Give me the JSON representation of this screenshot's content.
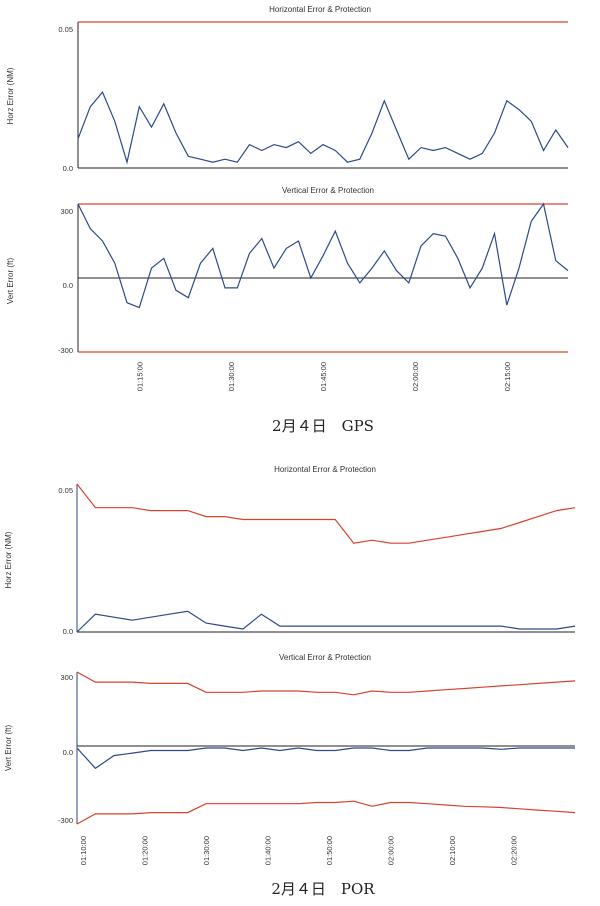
{
  "figure1": {
    "caption": "2月４日　GPS",
    "time_ticks": [
      "01:15:00",
      "01:30:00",
      "01:45:00",
      "02:00:00",
      "02:15:00"
    ]
  },
  "figure2": {
    "caption": "2月４日　POR",
    "time_ticks": [
      "01:10:00",
      "01:20:00",
      "01:30:00",
      "01:40:00",
      "01:50:00",
      "02:00:00",
      "02:10:00",
      "02:20:00"
    ]
  },
  "colors": {
    "error": "#2c4a8a",
    "protection": "#d8432c",
    "axis": "#222222"
  },
  "chart_data": [
    {
      "type": "line",
      "title": "Horizontal Error & Protection",
      "ylabel": "Horz Error (NM)",
      "ylim": [
        0,
        0.05
      ],
      "yticks": [
        "0.05",
        "0.0"
      ],
      "x_start": "01:05:00",
      "x_end": "02:25:00",
      "x": [
        "01:05:00",
        "01:07:00",
        "01:09:00",
        "01:11:00",
        "01:13:00",
        "01:15:00",
        "01:17:00",
        "01:19:00",
        "01:21:00",
        "01:23:00",
        "01:25:00",
        "01:27:00",
        "01:29:00",
        "01:31:00",
        "01:33:00",
        "01:35:00",
        "01:37:00",
        "01:39:00",
        "01:41:00",
        "01:43:00",
        "01:45:00",
        "01:47:00",
        "01:49:00",
        "01:51:00",
        "01:53:00",
        "01:55:00",
        "01:57:00",
        "01:59:00",
        "02:01:00",
        "02:03:00",
        "02:05:00",
        "02:07:00",
        "02:09:00",
        "02:11:00",
        "02:13:00",
        "02:15:00",
        "02:17:00",
        "02:19:00",
        "02:21:00",
        "02:23:00",
        "02:25:00"
      ],
      "series": [
        {
          "role": "protection",
          "values": [
            0.05,
            0.05,
            0.05,
            0.05,
            0.05,
            0.05,
            0.05,
            0.05,
            0.05,
            0.05,
            0.05,
            0.05,
            0.05,
            0.05,
            0.05,
            0.05,
            0.05,
            0.05,
            0.05,
            0.05,
            0.05,
            0.05,
            0.05,
            0.05,
            0.05,
            0.05,
            0.05,
            0.05,
            0.05,
            0.05,
            0.05,
            0.05,
            0.05,
            0.05,
            0.05,
            0.05,
            0.05,
            0.05,
            0.05,
            0.05,
            0.05
          ]
        },
        {
          "role": "error",
          "values": [
            0.01,
            0.021,
            0.026,
            0.016,
            0.002,
            0.021,
            0.014,
            0.022,
            0.012,
            0.004,
            0.003,
            0.002,
            0.003,
            0.002,
            0.008,
            0.006,
            0.008,
            0.007,
            0.009,
            0.005,
            0.008,
            0.006,
            0.002,
            0.003,
            0.012,
            0.023,
            0.013,
            0.003,
            0.007,
            0.006,
            0.007,
            0.005,
            0.003,
            0.005,
            0.012,
            0.023,
            0.02,
            0.016,
            0.006,
            0.013,
            0.007
          ]
        }
      ]
    },
    {
      "type": "line",
      "title": "Vertical Error & Protection",
      "ylabel": "Vert Error (ft)",
      "ylim": [
        -300,
        300
      ],
      "yticks": [
        "300",
        "0.0",
        "-300"
      ],
      "x_start": "01:05:00",
      "x_end": "02:25:00",
      "x": [
        "01:05:00",
        "01:07:00",
        "01:09:00",
        "01:11:00",
        "01:13:00",
        "01:15:00",
        "01:17:00",
        "01:19:00",
        "01:21:00",
        "01:23:00",
        "01:25:00",
        "01:27:00",
        "01:29:00",
        "01:31:00",
        "01:33:00",
        "01:35:00",
        "01:37:00",
        "01:39:00",
        "01:41:00",
        "01:43:00",
        "01:45:00",
        "01:47:00",
        "01:49:00",
        "01:51:00",
        "01:53:00",
        "01:55:00",
        "01:57:00",
        "01:59:00",
        "02:01:00",
        "02:03:00",
        "02:05:00",
        "02:07:00",
        "02:09:00",
        "02:11:00",
        "02:13:00",
        "02:15:00",
        "02:17:00",
        "02:19:00",
        "02:21:00",
        "02:23:00",
        "02:25:00"
      ],
      "series": [
        {
          "role": "protection-upper",
          "values": [
            300,
            300,
            300,
            300,
            300,
            300,
            300,
            300,
            300,
            300,
            300,
            300,
            300,
            300,
            300,
            300,
            300,
            300,
            300,
            300,
            300,
            300,
            300,
            300,
            300,
            300,
            300,
            300,
            300,
            300,
            300,
            300,
            300,
            300,
            300,
            300,
            300,
            300,
            300,
            300,
            300
          ]
        },
        {
          "role": "protection-lower",
          "values": [
            -300,
            -300,
            -300,
            -300,
            -300,
            -300,
            -300,
            -300,
            -300,
            -300,
            -300,
            -300,
            -300,
            -300,
            -300,
            -300,
            -300,
            -300,
            -300,
            -300,
            -300,
            -300,
            -300,
            -300,
            -300,
            -300,
            -300,
            -300,
            -300,
            -300,
            -300,
            -300,
            -300,
            -300,
            -300,
            -300,
            -300,
            -300,
            -300,
            -300,
            -300
          ]
        },
        {
          "role": "error",
          "values": [
            300,
            200,
            150,
            60,
            -100,
            -120,
            40,
            80,
            -50,
            -80,
            60,
            120,
            -40,
            -40,
            100,
            160,
            40,
            120,
            150,
            0,
            90,
            190,
            60,
            -20,
            40,
            110,
            30,
            -20,
            130,
            180,
            170,
            80,
            -40,
            40,
            180,
            -110,
            40,
            230,
            300,
            70,
            30
          ]
        }
      ]
    },
    {
      "type": "line",
      "title": "Horizontal Error & Protection",
      "ylabel": "Horz Error (NM)",
      "ylim": [
        0,
        0.05
      ],
      "yticks": [
        "0.05",
        "0.0"
      ],
      "x_start": "01:09:00",
      "x_end": "02:30:00",
      "x": [
        "01:09:00",
        "01:12:00",
        "01:15:00",
        "01:18:00",
        "01:21:00",
        "01:24:00",
        "01:27:00",
        "01:30:00",
        "01:33:00",
        "01:36:00",
        "01:39:00",
        "01:42:00",
        "01:45:00",
        "01:48:00",
        "01:51:00",
        "01:54:00",
        "01:57:00",
        "02:00:00",
        "02:03:00",
        "02:06:00",
        "02:09:00",
        "02:12:00",
        "02:15:00",
        "02:18:00",
        "02:21:00",
        "02:24:00",
        "02:27:00",
        "02:30:00"
      ],
      "series": [
        {
          "role": "protection",
          "values": [
            0.05,
            0.042,
            0.042,
            0.042,
            0.041,
            0.041,
            0.041,
            0.039,
            0.039,
            0.038,
            0.038,
            0.038,
            0.038,
            0.038,
            0.038,
            0.03,
            0.031,
            0.03,
            0.03,
            0.031,
            0.032,
            0.033,
            0.034,
            0.035,
            0.037,
            0.039,
            0.041,
            0.042
          ]
        },
        {
          "role": "error",
          "values": [
            0.0,
            0.006,
            0.005,
            0.004,
            0.005,
            0.006,
            0.007,
            0.003,
            0.002,
            0.001,
            0.006,
            0.002,
            0.002,
            0.002,
            0.002,
            0.002,
            0.002,
            0.002,
            0.002,
            0.002,
            0.002,
            0.002,
            0.002,
            0.002,
            0.001,
            0.001,
            0.001,
            0.002
          ]
        }
      ]
    },
    {
      "type": "line",
      "title": "Vertical Error & Protection",
      "ylabel": "Vert Error (ft)",
      "ylim": [
        -300,
        300
      ],
      "yticks": [
        "300",
        "0.0",
        "-300"
      ],
      "x_start": "01:09:00",
      "x_end": "02:30:00",
      "x": [
        "01:09:00",
        "01:12:00",
        "01:15:00",
        "01:18:00",
        "01:21:00",
        "01:24:00",
        "01:27:00",
        "01:30:00",
        "01:33:00",
        "01:36:00",
        "01:39:00",
        "01:42:00",
        "01:45:00",
        "01:48:00",
        "01:51:00",
        "01:54:00",
        "01:57:00",
        "02:00:00",
        "02:03:00",
        "02:06:00",
        "02:09:00",
        "02:12:00",
        "02:15:00",
        "02:18:00",
        "02:21:00",
        "02:24:00",
        "02:27:00",
        "02:30:00"
      ],
      "series": [
        {
          "role": "protection-upper",
          "values": [
            300,
            260,
            260,
            260,
            255,
            255,
            255,
            220,
            220,
            220,
            225,
            225,
            225,
            220,
            220,
            210,
            225,
            220,
            220,
            225,
            230,
            235,
            240,
            245,
            250,
            255,
            260,
            265
          ]
        },
        {
          "role": "protection-lower",
          "values": [
            -300,
            -260,
            -260,
            -260,
            -255,
            -255,
            -255,
            -220,
            -220,
            -220,
            -220,
            -220,
            -220,
            -215,
            -215,
            -210,
            -230,
            -215,
            -215,
            -220,
            -225,
            -230,
            -232,
            -235,
            -240,
            -245,
            -250,
            -255
          ]
        },
        {
          "role": "error",
          "values": [
            0,
            -80,
            -30,
            -20,
            -10,
            -10,
            -10,
            0,
            0,
            -10,
            0,
            -10,
            0,
            -10,
            -10,
            0,
            0,
            -10,
            -10,
            0,
            0,
            0,
            0,
            -5,
            0,
            0,
            0,
            0
          ]
        }
      ]
    }
  ]
}
